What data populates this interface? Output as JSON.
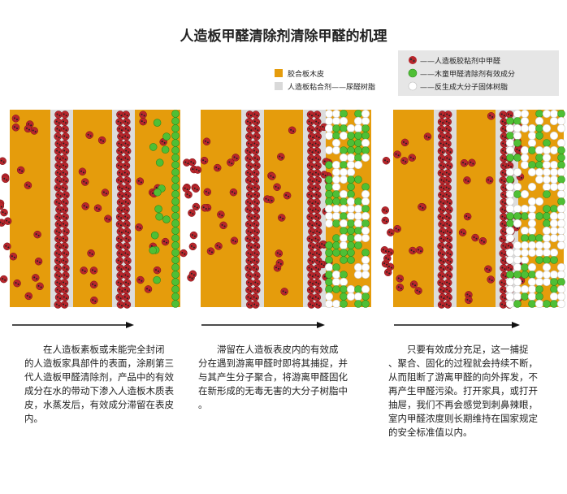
{
  "title": "人造板甲醛清除剂清除甲醛的机理",
  "legend_left": [
    "胶合板木皮",
    "人造板粘合剂——尿醛树脂"
  ],
  "legend_right": [
    "——人造板胶粘剂中甲醛",
    "——木童甲醛清除剂有效成分",
    "——反生成大分子固体树脂"
  ],
  "captions": [
    [
      "在人造板素板或未能完全封闭",
      "的人造板家具部件的表面，涂刷第三",
      "代人造板甲醛清除剂，产品中的有效",
      "成分在水的带动下渗入人造板木质表",
      "皮，水蒸发后，有效成分滞留在表皮",
      "内。"
    ],
    [
      "滞留在人造板表皮内的有效成",
      "分在遇到游离甲醛时即将其捕捉，并",
      "与其产生分子聚合，将游离甲醛固化",
      "在新形成的无毒无害的大分子树脂中",
      "。"
    ],
    [
      "只要有效成分充足，这一捕捉",
      "、聚合、固化的过程就会持续不断，",
      "从而阻断了游离甲醛的向外挥发，不",
      "再产生甲醛污染。打开家具，或打开",
      "抽屉，我们不再会感觉到刺鼻辣眼，",
      "室内甲醛浓度则长期维持在国家规定",
      "的安全标准值以内。"
    ]
  ]
}
